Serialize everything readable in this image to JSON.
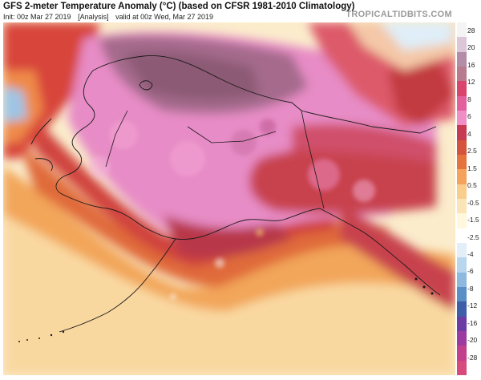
{
  "header": {
    "title": "GFS 2-meter Temperature Anomaly (°C) (based on CFSR 1981-2010 Climatology)",
    "init": "Init: 00z Mar 27 2019",
    "analysis": "[Analysis]",
    "valid": "valid at 00z Wed, Mar 27 2019",
    "brand": "TROPICALTIDBITS.COM"
  },
  "map": {
    "region": "Alaska",
    "variable": "2-meter Temperature Anomaly"
  },
  "colorbar": {
    "labels": [
      "28",
      "20",
      "16",
      "12",
      "8",
      "6",
      "4",
      "2.5",
      "1.5",
      "0.5",
      "-0.5",
      "-1.5",
      "-2.5",
      "-4",
      "-6",
      "-8",
      "-12",
      "-16",
      "-20",
      "-28"
    ],
    "colors": [
      "#f4f4f4",
      "#dcc6d8",
      "#b48ca8",
      "#b77a8f",
      "#d9446c",
      "#e2619c",
      "#f08ec8",
      "#c63a52",
      "#d4533c",
      "#e5733e",
      "#f4a35a",
      "#f9cd8c",
      "#fbe5b6",
      "#fff8dc",
      "#ffffff",
      "#e4eef8",
      "#b8d6ee",
      "#8db9de",
      "#5a8fc6",
      "#3e5fa8",
      "#6a3ca4",
      "#9b3aa0",
      "#c23f8c",
      "#d64a7c"
    ]
  }
}
